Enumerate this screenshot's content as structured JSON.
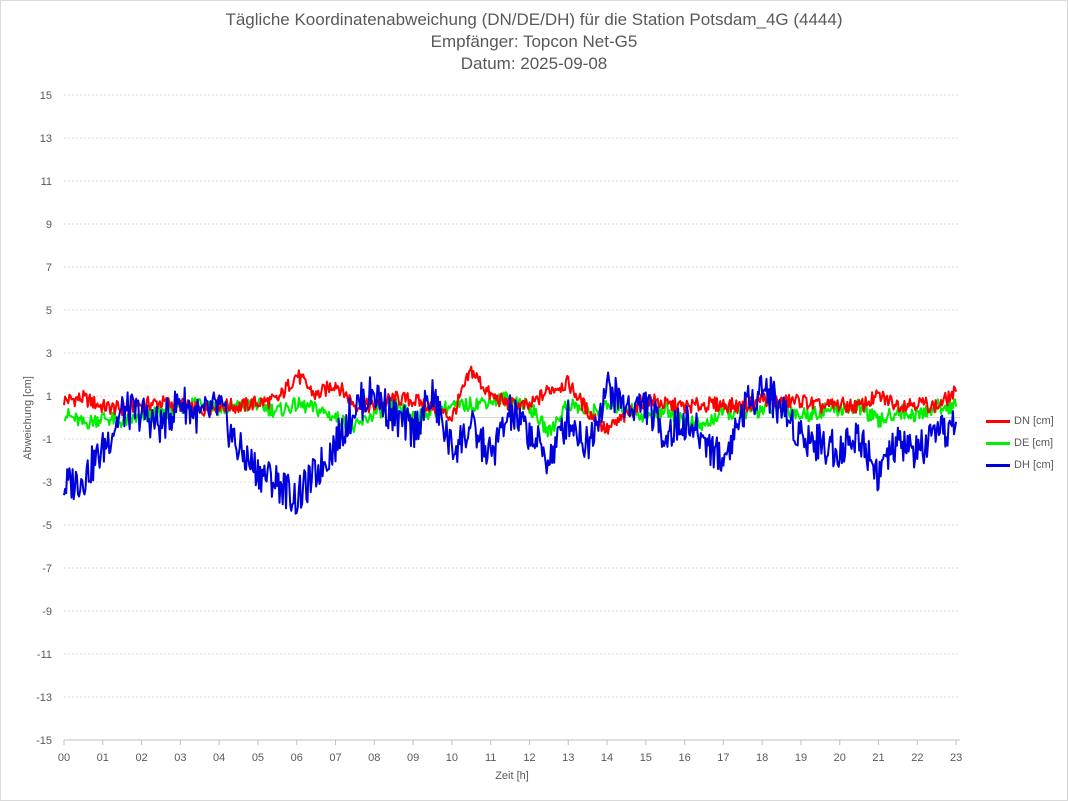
{
  "chart_data": {
    "type": "line",
    "title": "Tägliche Koordinatenabweichung (DN/DE/DH) für die Station Potsdam_4G (4444)",
    "subtitle_receiver": "Empfänger: Topcon Net-G5",
    "subtitle_date": "Datum: 2025-09-08",
    "xlabel": "Zeit [h]",
    "ylabel": "Abweichung [cm]",
    "x_ticks": [
      "00",
      "01",
      "02",
      "03",
      "04",
      "05",
      "06",
      "07",
      "08",
      "09",
      "10",
      "11",
      "12",
      "13",
      "14",
      "15",
      "16",
      "17",
      "18",
      "19",
      "20",
      "21",
      "22",
      "23"
    ],
    "xlim": [
      0,
      23.1
    ],
    "ylim": [
      -15,
      15
    ],
    "y_ticks": [
      15,
      13,
      11,
      9,
      7,
      5,
      3,
      1,
      -1,
      -3,
      -5,
      -7,
      -9,
      -11,
      -13,
      -15
    ],
    "gridlines": "horizontal dotted",
    "legend_position": "right",
    "series": [
      {
        "name": "DN [cm]",
        "color": "#ff0000",
        "x": [
          0,
          0.5,
          1,
          1.5,
          2,
          2.5,
          3,
          3.5,
          4,
          4.5,
          5,
          5.5,
          6,
          6.5,
          7,
          7.5,
          8,
          8.5,
          9,
          9.5,
          10,
          10.5,
          11,
          11.5,
          12,
          12.5,
          13,
          13.5,
          14,
          14.5,
          15,
          15.5,
          16,
          16.5,
          17,
          17.5,
          18,
          18.5,
          19,
          19.5,
          20,
          20.5,
          21,
          21.5,
          22,
          22.5,
          23
        ],
        "values": [
          0.8,
          0.9,
          0.5,
          0.4,
          0.6,
          0.7,
          0.6,
          0.3,
          0.6,
          0.5,
          0.7,
          0.8,
          2.0,
          1.0,
          1.6,
          0.6,
          0.5,
          0.9,
          0.8,
          0.5,
          0.0,
          2.2,
          1.0,
          0.6,
          0.5,
          1.3,
          1.6,
          0.3,
          -0.6,
          0.1,
          0.9,
          0.6,
          0.5,
          0.6,
          0.6,
          0.5,
          0.9,
          0.7,
          0.8,
          0.5,
          0.6,
          0.5,
          1.0,
          0.6,
          0.7,
          0.5,
          1.2
        ]
      },
      {
        "name": "DE [cm]",
        "color": "#00ee00",
        "x": [
          0,
          0.5,
          1,
          1.5,
          2,
          2.5,
          3,
          3.5,
          4,
          4.5,
          5,
          5.5,
          6,
          6.5,
          7,
          7.5,
          8,
          8.5,
          9,
          9.5,
          10,
          10.5,
          11,
          11.5,
          12,
          12.5,
          13,
          13.5,
          14,
          14.5,
          15,
          15.5,
          16,
          16.5,
          17,
          17.5,
          18,
          18.5,
          19,
          19.5,
          20,
          20.5,
          21,
          21.5,
          22,
          22.5,
          23
        ],
        "values": [
          0.2,
          -0.3,
          0.0,
          -0.2,
          0.0,
          0.2,
          0.5,
          0.8,
          0.4,
          0.5,
          0.6,
          0.3,
          0.6,
          0.4,
          0.0,
          -0.5,
          0.2,
          0.6,
          0.1,
          0.3,
          0.5,
          0.6,
          0.8,
          0.9,
          0.5,
          -0.7,
          0.7,
          0.2,
          0.5,
          0.5,
          0.0,
          0.4,
          -0.2,
          -0.4,
          0.3,
          0.1,
          0.4,
          0.5,
          0.1,
          0.3,
          0.4,
          0.5,
          -0.2,
          0.3,
          0.1,
          0.5,
          0.5
        ]
      },
      {
        "name": "DH [cm]",
        "color": "#0000dd",
        "x": [
          0,
          0.5,
          1,
          1.5,
          2,
          2.5,
          3,
          3.5,
          4,
          4.5,
          5,
          5.5,
          6,
          6.5,
          7,
          7.5,
          8,
          8.5,
          9,
          9.5,
          10,
          10.5,
          11,
          11.5,
          12,
          12.5,
          13,
          13.5,
          14,
          14.5,
          15,
          15.5,
          16,
          16.5,
          17,
          17.5,
          18,
          18.5,
          19,
          19.5,
          20,
          20.5,
          21,
          21.5,
          22,
          22.5,
          23
        ],
        "values": [
          -3.2,
          -2.8,
          -1.5,
          0.3,
          0.2,
          -0.4,
          0.8,
          0.0,
          0.5,
          -1.5,
          -2.5,
          -3.0,
          -3.8,
          -2.6,
          -1.2,
          0.5,
          1.2,
          0.0,
          -0.6,
          1.0,
          -1.5,
          -0.5,
          -1.8,
          0.2,
          -0.7,
          -2.0,
          0.0,
          -1.3,
          1.4,
          0.5,
          0.6,
          -0.8,
          -0.2,
          -1.0,
          -2.0,
          0.3,
          1.5,
          0.4,
          -0.8,
          -1.2,
          -1.5,
          -0.8,
          -2.6,
          -1.2,
          -1.6,
          -1.0,
          -0.2
        ]
      }
    ]
  }
}
